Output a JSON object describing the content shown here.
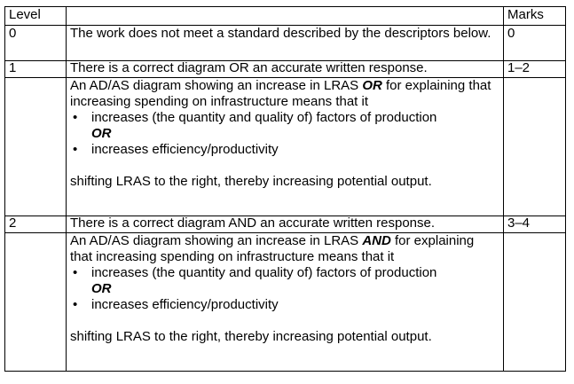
{
  "header": {
    "level": "Level",
    "description": "",
    "marks": "Marks"
  },
  "rows": [
    {
      "level": "0",
      "description": "The work does not meet a standard described by the descriptors below.",
      "marks": "0"
    },
    {
      "level": "1",
      "description": "There is a correct diagram OR an accurate written response.",
      "marks": "1–2"
    },
    {
      "level": "2",
      "description": "There is a correct diagram AND an accurate written response.",
      "marks": "3–4"
    }
  ],
  "descriptor_l1": {
    "intro_before": "An AD/AS diagram showing an increase in LRAS ",
    "connector": "OR",
    "intro_after": " for explaining that increasing spending on infrastructure means that it",
    "point_1": "increases (the quantity and quality of) factors of production",
    "or_label": "OR",
    "point_2": "increases efficiency/productivity",
    "conclusion": "shifting LRAS to the right, thereby increasing potential output."
  },
  "descriptor_l2": {
    "intro_before": "An AD/AS diagram showing an increase in LRAS ",
    "connector": "AND",
    "intro_after": " for explaining that increasing spending on infrastructure means that it",
    "point_1": "increases (the quantity and quality of) factors of production",
    "or_label": "OR",
    "point_2": "increases efficiency/productivity",
    "conclusion": "shifting LRAS to the right, thereby increasing potential output."
  }
}
